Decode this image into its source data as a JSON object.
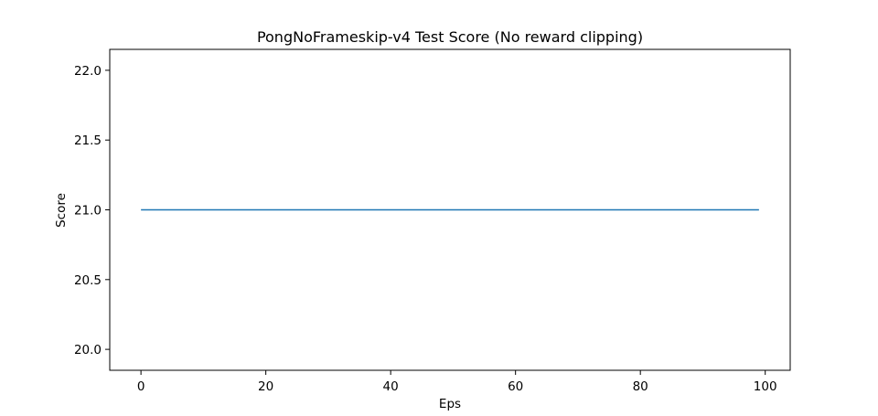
{
  "chart_data": {
    "type": "line",
    "title": "PongNoFrameskip-v4 Test Score (No reward clipping)",
    "xlabel": "Eps",
    "ylabel": "Score",
    "xlim": [
      -5,
      104
    ],
    "ylim": [
      19.85,
      22.15
    ],
    "xticks": [
      0,
      20,
      40,
      60,
      80,
      100
    ],
    "xtick_labels": [
      "0",
      "20",
      "40",
      "60",
      "80",
      "100"
    ],
    "yticks": [
      20.0,
      20.5,
      21.0,
      21.5,
      22.0
    ],
    "ytick_labels": [
      "20.0",
      "20.5",
      "21.0",
      "21.5",
      "22.0"
    ],
    "grid": false,
    "series": [
      {
        "color": "#1f77b4",
        "x": [
          0,
          99
        ],
        "y": [
          21.0,
          21.0
        ]
      }
    ]
  }
}
